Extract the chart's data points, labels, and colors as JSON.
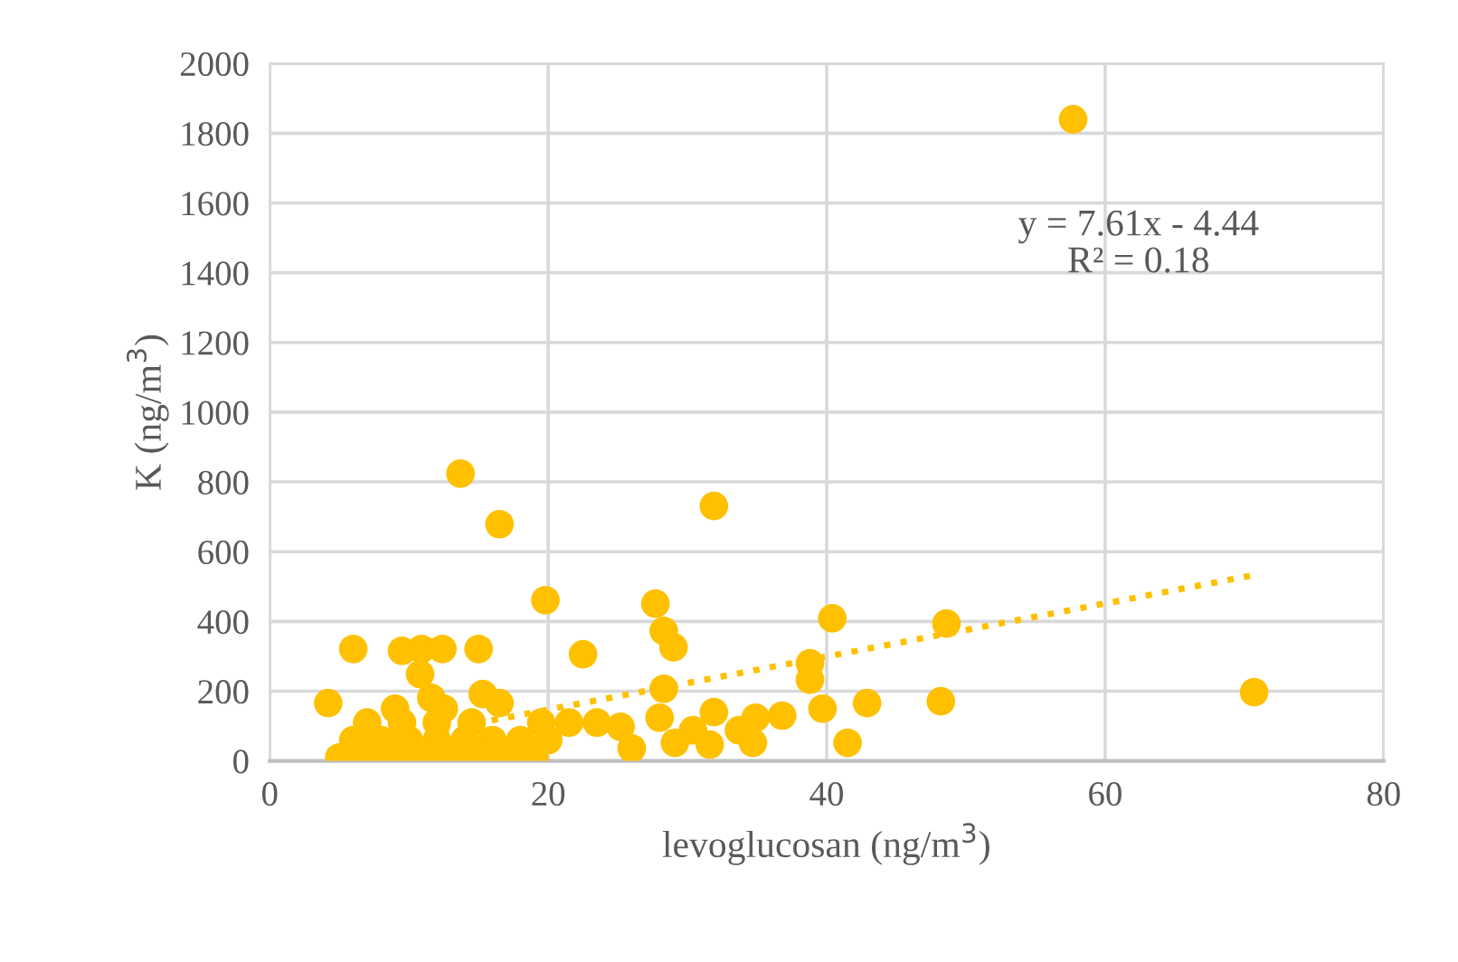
{
  "chart_data": {
    "type": "scatter",
    "xlabel": "levoglucosan (ng/m$^{3}$)",
    "ylabel": "K (ng/m$^{3}$)",
    "xlim": [
      0,
      80
    ],
    "xticks": [
      0,
      20,
      40,
      60,
      80
    ],
    "ylim": [
      0,
      2000
    ],
    "yticks": [
      0,
      200,
      400,
      600,
      800,
      1000,
      1200,
      1400,
      1600,
      1800,
      2000
    ],
    "grid": true,
    "marker": "circle",
    "annotations": [
      "y = 7.61x - 4.44\nR² = 0.18"
    ],
    "series": [
      {
        "color": "#ffc000",
        "x": [
          57.7,
          13.7,
          16.5,
          31.9,
          19.8,
          27.7,
          40.4,
          28.3,
          29.0,
          22.5,
          48.6,
          6.0,
          9.5,
          10.9,
          12.4,
          15.0,
          10.8,
          4.2,
          11.6,
          15.3,
          16.5,
          38.8,
          38.8,
          28.3,
          28.0,
          25.2,
          26.0,
          29.1,
          30.4,
          31.9,
          31.6,
          33.7,
          34.9,
          34.7,
          36.8,
          39.7,
          41.5,
          42.9,
          48.2,
          70.7,
          5,
          7,
          9,
          11,
          13,
          15,
          17,
          19,
          6,
          8,
          10,
          12,
          14,
          16,
          18,
          20,
          7,
          9.5,
          12,
          14.5,
          19.5,
          21.5,
          23.5,
          9,
          12.5
        ],
        "values": [
          1840,
          824,
          679,
          731,
          461,
          451,
          409,
          373,
          326,
          306,
          394,
          321,
          316,
          321,
          321,
          321,
          249,
          166,
          181,
          192,
          166,
          280,
          233,
          207,
          124,
          98,
          36,
          52,
          88,
          140,
          47,
          88,
          124,
          52,
          130,
          150,
          52,
          166,
          171,
          197,
          10,
          10,
          10,
          10,
          10,
          10,
          10,
          10,
          60,
          60,
          60,
          60,
          60,
          60,
          60,
          60,
          110,
          110,
          110,
          110,
          110,
          110,
          110,
          150,
          150
        ]
      },
      {
        "type": "line",
        "color": "#ffc000",
        "line_style": "dotted",
        "marker": "none",
        "x": [
          4.2,
          70.7
        ],
        "values": [
          27,
          533
        ]
      }
    ]
  }
}
